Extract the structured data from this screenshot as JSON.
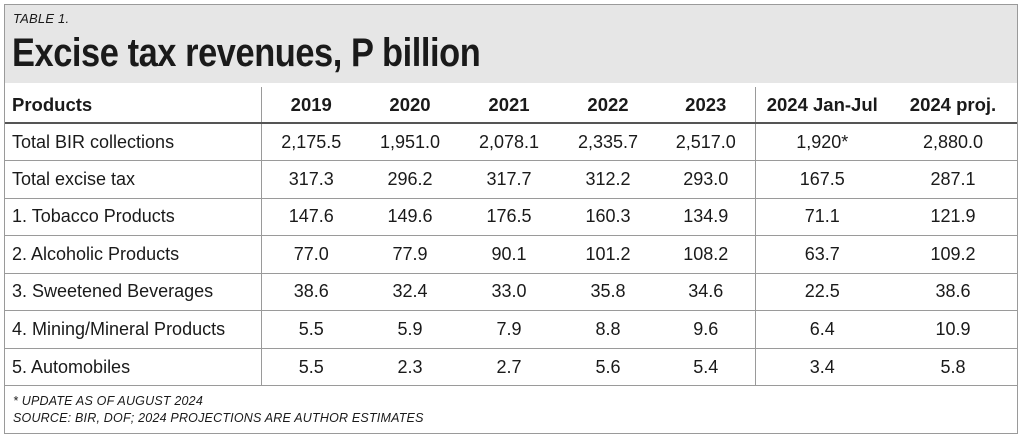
{
  "table_label": "TABLE 1.",
  "title": "Excise tax revenues, P billion",
  "columns": [
    "Products",
    "2019",
    "2020",
    "2021",
    "2022",
    "2023",
    "2024 Jan-Jul",
    "2024 proj."
  ],
  "rows": [
    [
      "Total BIR collections",
      "2,175.5",
      "1,951.0",
      "2,078.1",
      "2,335.7",
      "2,517.0",
      "1,920*",
      "2,880.0"
    ],
    [
      "Total excise tax",
      "317.3",
      "296.2",
      "317.7",
      "312.2",
      "293.0",
      "167.5",
      "287.1"
    ],
    [
      "1. Tobacco Products",
      "147.6",
      "149.6",
      "176.5",
      "160.3",
      "134.9",
      "71.1",
      "121.9"
    ],
    [
      "2. Alcoholic Products",
      "77.0",
      "77.9",
      "90.1",
      "101.2",
      "108.2",
      "63.7",
      "109.2"
    ],
    [
      "3. Sweetened Beverages",
      "38.6",
      "32.4",
      "33.0",
      "35.8",
      "34.6",
      "22.5",
      "38.6"
    ],
    [
      "4. Mining/Mineral Products",
      "5.5",
      "5.9",
      "7.9",
      "8.8",
      "9.6",
      "6.4",
      "10.9"
    ],
    [
      "5. Automobiles",
      "5.5",
      "2.3",
      "2.7",
      "5.6",
      "5.4",
      "3.4",
      "5.8"
    ]
  ],
  "notes": {
    "update": "* UPDATE AS OF AUGUST 2024",
    "source": "SOURCE: BIR, DOF; 2024 PROJECTIONS ARE AUTHOR ESTIMATES"
  }
}
